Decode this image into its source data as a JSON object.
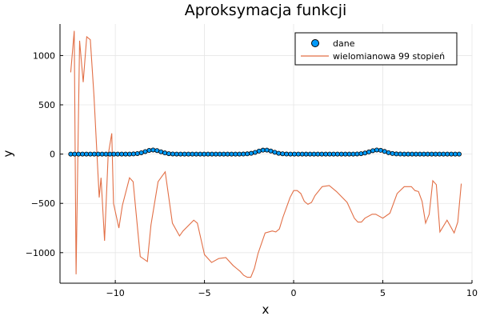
{
  "chart_data": {
    "type": "scatter+line",
    "title": "Aproksymacja funkcji",
    "xlabel": "x",
    "ylabel": "y",
    "xlim": [
      -13.1,
      10.0
    ],
    "ylim": [
      -1310,
      1320
    ],
    "xticks": [
      -10,
      -5,
      0,
      5,
      10
    ],
    "yticks": [
      -1000,
      -500,
      0,
      500,
      1000
    ],
    "xtick_labels": [
      "−10",
      "−5",
      "0",
      "5",
      "10"
    ],
    "ytick_labels": [
      "−1000",
      "−500",
      "0",
      "500",
      "1000"
    ],
    "grid": true,
    "legend_position": "top-right",
    "colors": {
      "dane": "#009AFA",
      "wielomian": "#E26F46",
      "marker_edge": "#000000",
      "axis": "#000000",
      "grid": "#e6e6e6"
    },
    "series": [
      {
        "name": "dane",
        "kind": "scatter",
        "x_start": -12.5,
        "x_step": 0.22,
        "count": 100,
        "bumps": [
          {
            "center": -7.9,
            "height": 42,
            "width": 0.6
          },
          {
            "center": -1.6,
            "height": 42,
            "width": 0.6
          },
          {
            "center": 4.7,
            "height": 42,
            "width": 0.6
          }
        ]
      },
      {
        "name": "wielomianowa 99 stopień",
        "kind": "line",
        "x": [
          -12.5,
          -12.3,
          -12.2,
          -12.0,
          -11.8,
          -11.6,
          -11.4,
          -11.2,
          -10.9,
          -10.8,
          -10.6,
          -10.4,
          -10.2,
          -10.1,
          -9.8,
          -9.6,
          -9.2,
          -9.0,
          -8.6,
          -8.2,
          -8.0,
          -7.6,
          -7.2,
          -6.8,
          -6.4,
          -6.2,
          -5.6,
          -5.4,
          -5.0,
          -4.6,
          -4.2,
          -3.8,
          -3.4,
          -3.2,
          -3.0,
          -2.8,
          -2.6,
          -2.4,
          -2.2,
          -2.0,
          -1.6,
          -1.2,
          -1.0,
          -0.8,
          -0.6,
          -0.2,
          0.0,
          0.2,
          0.4,
          0.6,
          0.8,
          1.0,
          1.2,
          1.6,
          2.0,
          2.4,
          3.0,
          3.4,
          3.6,
          3.8,
          4.0,
          4.4,
          4.6,
          5.0,
          5.4,
          5.8,
          6.2,
          6.6,
          6.8,
          7.0,
          7.2,
          7.4,
          7.6,
          7.8,
          8.0,
          8.2,
          8.6,
          9.0,
          9.2,
          9.4
        ],
        "y": [
          830,
          1250,
          -1220,
          1150,
          730,
          1190,
          1160,
          600,
          -440,
          -240,
          -880,
          -10,
          210,
          -500,
          -750,
          -520,
          -240,
          -280,
          -1040,
          -1090,
          -720,
          -280,
          -180,
          -700,
          -830,
          -780,
          -670,
          -700,
          -1020,
          -1100,
          -1060,
          -1050,
          -1130,
          -1160,
          -1190,
          -1230,
          -1250,
          -1250,
          -1160,
          -1010,
          -800,
          -780,
          -790,
          -760,
          -640,
          -440,
          -370,
          -370,
          -400,
          -480,
          -510,
          -490,
          -420,
          -330,
          -320,
          -380,
          -490,
          -650,
          -690,
          -690,
          -650,
          -610,
          -610,
          -650,
          -600,
          -400,
          -330,
          -330,
          -370,
          -380,
          -480,
          -700,
          -610,
          -270,
          -310,
          -790,
          -670,
          -800,
          -690,
          -300
        ]
      }
    ]
  }
}
